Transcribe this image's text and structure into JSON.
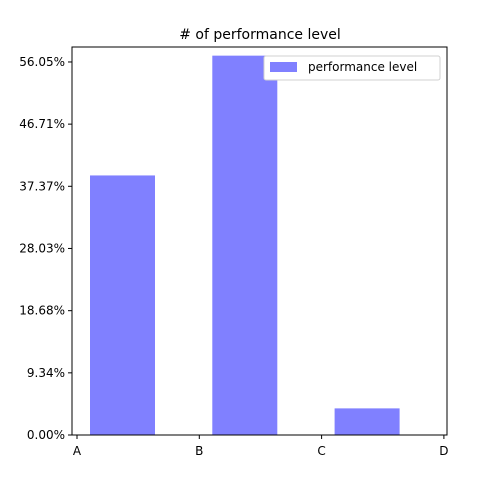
{
  "chart_data": {
    "type": "bar",
    "title": "# of performance level",
    "categories": [
      "A",
      "B",
      "C",
      "D"
    ],
    "series": [
      {
        "name": "performance level",
        "values": [
          39.0,
          57.0,
          4.0,
          0.0
        ]
      }
    ],
    "xlabel": "",
    "ylabel": "",
    "ylim": [
      0,
      58.3
    ],
    "yticks": [
      0,
      9.34,
      18.68,
      28.03,
      37.37,
      46.71,
      56.05
    ],
    "ytick_labels": [
      "0.00%",
      "9.34%",
      "18.68%",
      "28.03%",
      "37.37%",
      "46.71%",
      "56.05%"
    ],
    "x_tick_labels": [
      "A",
      "B",
      "C",
      "D"
    ],
    "grid": false,
    "legend_position": "top-right",
    "bar_color": "#8080ff"
  }
}
